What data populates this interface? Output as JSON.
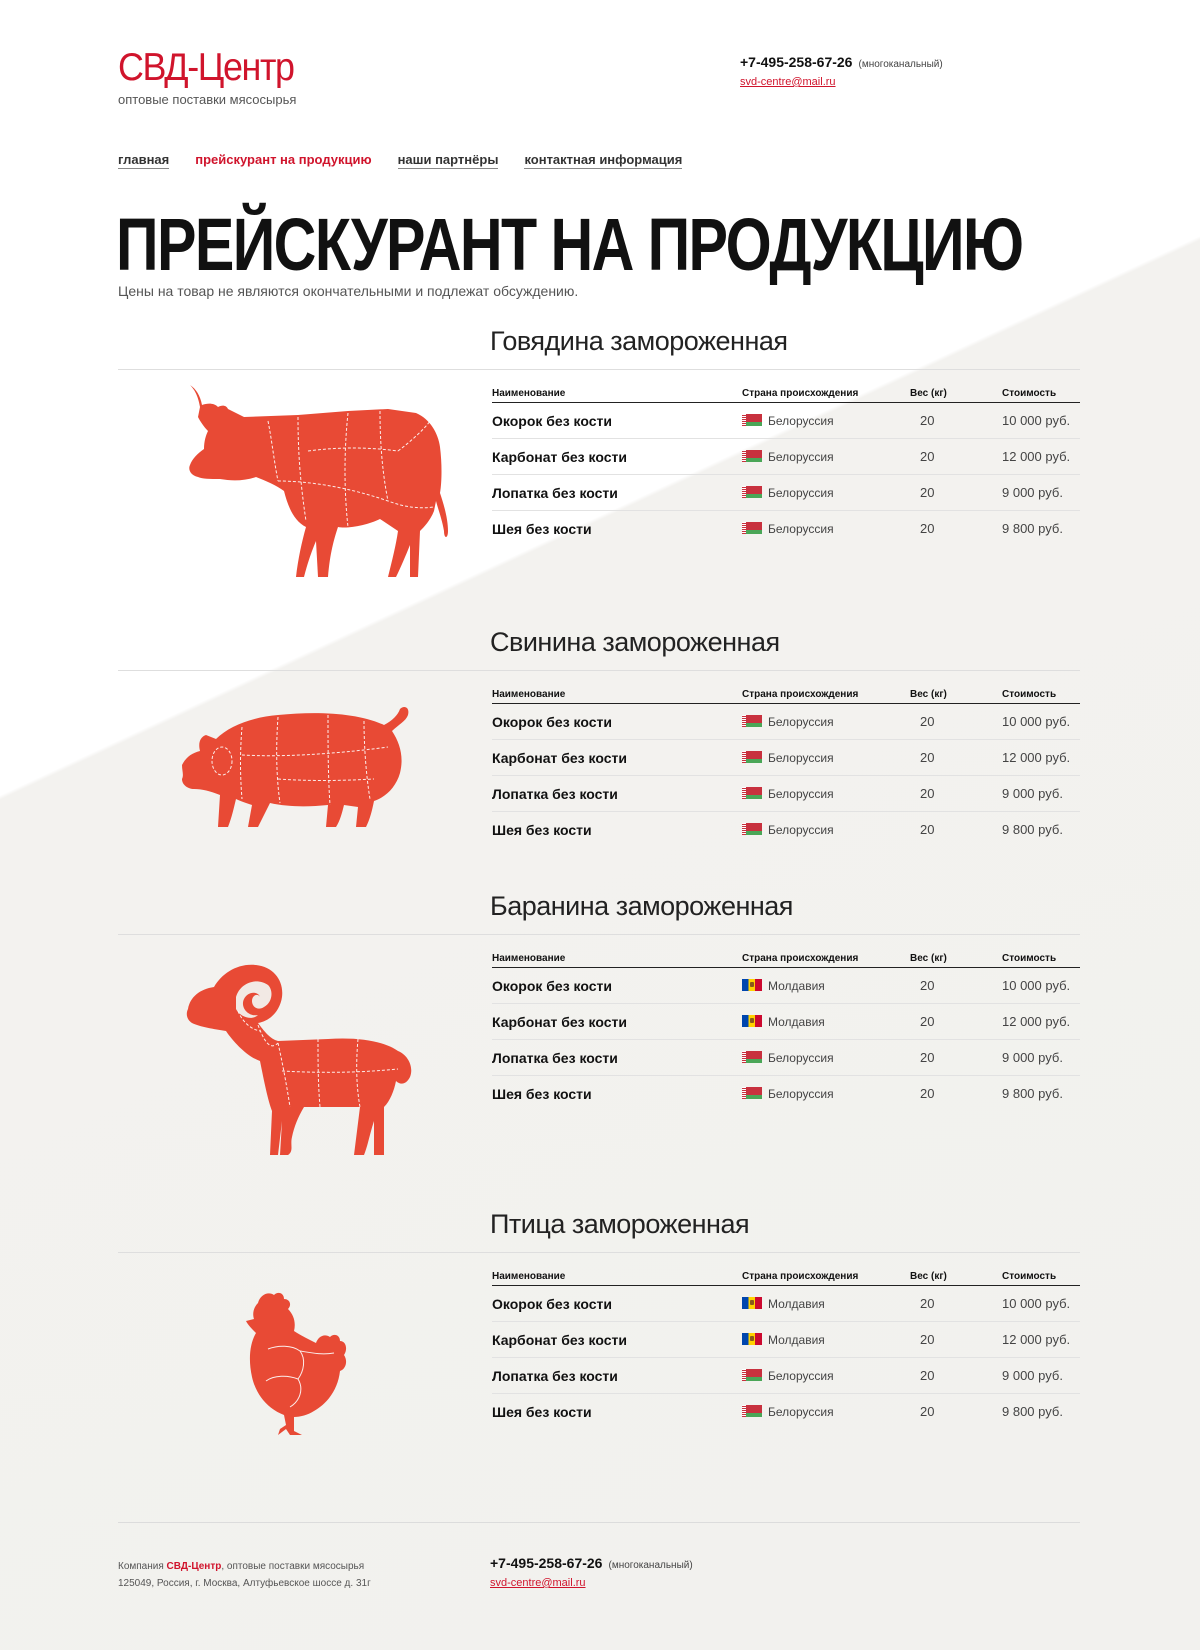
{
  "logo": {
    "title": "СВД-Центр",
    "subtitle": "оптовые поставки мясосырья"
  },
  "contact": {
    "phone": "+7-495-258-67-26",
    "phone_note": "(многоканальный)",
    "email": "svd-centre@mail.ru"
  },
  "nav": [
    {
      "label": "главная"
    },
    {
      "label": "прейскурант на продукцию"
    },
    {
      "label": "наши партнёры"
    },
    {
      "label": "контактная информация"
    }
  ],
  "page": {
    "title": "ПРЕЙСКУРАНТ НА ПРОДУКЦИЮ",
    "subtitle": "Цены на товар не являются окончательными и подлежат обсуждению."
  },
  "table_headers": {
    "name": "Наименование",
    "country": "Страна происхождения",
    "weight": "Вес (кг)",
    "price": "Стоимость"
  },
  "sections": [
    {
      "title": "Говядина замороженная",
      "icon": "cow-icon",
      "rows": [
        {
          "name": "Окорок без кости",
          "country": "Белоруссия",
          "flag": "belarus",
          "weight": "20",
          "price": "10 000 руб."
        },
        {
          "name": "Карбонат без кости",
          "country": "Белоруссия",
          "flag": "belarus",
          "weight": "20",
          "price": "12 000 руб."
        },
        {
          "name": "Лопатка без кости",
          "country": "Белоруссия",
          "flag": "belarus",
          "weight": "20",
          "price": "9 000 руб."
        },
        {
          "name": "Шея без кости",
          "country": "Белоруссия",
          "flag": "belarus",
          "weight": "20",
          "price": "9 800 руб."
        }
      ]
    },
    {
      "title": "Свинина замороженная",
      "icon": "pig-icon",
      "rows": [
        {
          "name": "Окорок без кости",
          "country": "Белоруссия",
          "flag": "belarus",
          "weight": "20",
          "price": "10 000 руб."
        },
        {
          "name": "Карбонат без кости",
          "country": "Белоруссия",
          "flag": "belarus",
          "weight": "20",
          "price": "12 000 руб."
        },
        {
          "name": "Лопатка без кости",
          "country": "Белоруссия",
          "flag": "belarus",
          "weight": "20",
          "price": "9 000 руб."
        },
        {
          "name": "Шея без кости",
          "country": "Белоруссия",
          "flag": "belarus",
          "weight": "20",
          "price": "9 800 руб."
        }
      ]
    },
    {
      "title": "Баранина замороженная",
      "icon": "ram-icon",
      "rows": [
        {
          "name": "Окорок без кости",
          "country": "Молдавия",
          "flag": "moldova",
          "weight": "20",
          "price": "10 000 руб."
        },
        {
          "name": "Карбонат без кости",
          "country": "Молдавия",
          "flag": "moldova",
          "weight": "20",
          "price": "12 000 руб."
        },
        {
          "name": "Лопатка без кости",
          "country": "Белоруссия",
          "flag": "belarus",
          "weight": "20",
          "price": "9 000 руб."
        },
        {
          "name": "Шея без кости",
          "country": "Белоруссия",
          "flag": "belarus",
          "weight": "20",
          "price": "9 800 руб."
        }
      ]
    },
    {
      "title": "Птица замороженная",
      "icon": "chicken-icon",
      "rows": [
        {
          "name": "Окорок без кости",
          "country": "Молдавия",
          "flag": "moldova",
          "weight": "20",
          "price": "10 000 руб."
        },
        {
          "name": "Карбонат без кости",
          "country": "Молдавия",
          "flag": "moldova",
          "weight": "20",
          "price": "12 000 руб."
        },
        {
          "name": "Лопатка без кости",
          "country": "Белоруссия",
          "flag": "belarus",
          "weight": "20",
          "price": "9 000 руб."
        },
        {
          "name": "Шея без кости",
          "country": "Белоруссия",
          "flag": "belarus",
          "weight": "20",
          "price": "9 800 руб."
        }
      ]
    }
  ],
  "footer": {
    "company_prefix": "Компания",
    "brand": "СВД-Центр",
    "company_suffix": ", оптовые поставки мясосырья",
    "address": "125049, Россия, г. Москва, Алтуфьевское шоссе д. 31г",
    "phone": "+7-495-258-67-26",
    "phone_note": "(многоканальный)",
    "email": "svd-centre@mail.ru"
  },
  "colors": {
    "accent": "#d0142c",
    "animal": "#e84a35"
  }
}
